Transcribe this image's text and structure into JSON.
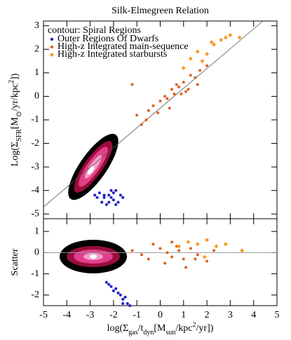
{
  "chart_data": [
    {
      "type": "scatter",
      "title": "Silk-Elmegreen Relation",
      "note": "contour: Spiral Regions",
      "note_color": "#d020a0",
      "y_label_parts": [
        {
          "text": "Log(Σ"
        },
        {
          "text": "SFR",
          "shift": "sub"
        },
        {
          "text": "[M"
        },
        {
          "text": "⊙",
          "shift": "sub"
        },
        {
          "text": "/yr/kpc"
        },
        {
          "text": "2",
          "shift": "super"
        },
        {
          "text": "])"
        }
      ],
      "xlim": [
        -5,
        5
      ],
      "xticks": [
        -5,
        -4,
        -3,
        -2,
        -1,
        0,
        1,
        2,
        3,
        4,
        5
      ],
      "ylim": [
        -5.2,
        3.2
      ],
      "yticks": [
        -5,
        -4,
        -3,
        -2,
        -1,
        0,
        1,
        2,
        3
      ],
      "fit_line": {
        "x": [
          -5,
          4.4
        ],
        "y": [
          -4.7,
          3.2
        ],
        "color": "#555555"
      },
      "series": [
        {
          "name": "Outer Regions Of Dwarfs",
          "color": "#2020c8",
          "marker": "circle",
          "x": [
            -2.6,
            -2.4,
            -2.2,
            -2.0,
            -1.9,
            -1.7,
            -2.5,
            -2.3,
            -2.1,
            -1.8,
            -2.7,
            -2.0,
            -1.6,
            -2.2,
            -2.4,
            -1.9,
            -2.8,
            -2.1
          ],
          "values": [
            -4.1,
            -4.3,
            -4.2,
            -4.4,
            -4.0,
            -4.2,
            -4.5,
            -4.6,
            -4.3,
            -4.5,
            -4.3,
            -4.1,
            -4.3,
            -4.5,
            -4.2,
            -4.6,
            -4.2,
            -4.0
          ]
        },
        {
          "name": "High-z Integrated main-sequence",
          "color": "#e0601a",
          "marker": "circle",
          "x": [
            -1.2,
            -0.8,
            -0.5,
            -0.3,
            0,
            0.2,
            0.3,
            0.5,
            0.6,
            0.8,
            1.0,
            1.1,
            1.3,
            1.5,
            1.7,
            2.0,
            0.4,
            0.9,
            -0.1,
            1.2,
            0.7,
            -0.6,
            -1.0,
            1.6
          ],
          "values": [
            0.5,
            -1.2,
            -0.6,
            -0.4,
            -0.2,
            0,
            -0.1,
            0.3,
            0.1,
            0.4,
            0.6,
            0.2,
            0.9,
            0.8,
            1.1,
            1.3,
            -0.5,
            0.1,
            -0.7,
            0.3,
            0.5,
            -1.0,
            -0.8,
            0.5
          ]
        },
        {
          "name": "High-z Integrated starbursts",
          "color": "#f59a22",
          "marker": "diamond",
          "x": [
            1.0,
            1.3,
            1.6,
            2.0,
            2.3,
            2.6,
            3.0,
            3.4,
            1.8,
            2.2,
            2.8
          ],
          "values": [
            1.2,
            1.6,
            1.9,
            1.8,
            2.2,
            2.4,
            2.6,
            2.5,
            1.5,
            2.3,
            2.5
          ]
        }
      ]
    },
    {
      "type": "scatter",
      "y_label_parts": [
        {
          "text": "Scatter"
        }
      ],
      "x_label_parts": [
        {
          "text": "log(Σ"
        },
        {
          "text": "gas",
          "shift": "sub"
        },
        {
          "text": "/t"
        },
        {
          "text": "dyn",
          "shift": "sub"
        },
        {
          "text": "[M"
        },
        {
          "text": "sun",
          "shift": "sub"
        },
        {
          "text": "/kpc"
        },
        {
          "text": "2",
          "shift": "super"
        },
        {
          "text": "/yr])"
        }
      ],
      "xlim": [
        -5,
        5
      ],
      "xticks": [
        -5,
        -4,
        -3,
        -2,
        -1,
        0,
        1,
        2,
        3,
        4,
        5
      ],
      "ylim": [
        -2.5,
        1.6
      ],
      "yticks": [
        -2,
        -1,
        0,
        1
      ],
      "hline": 0,
      "hline_color": "#999999",
      "series": [
        {
          "color": "#2020c8",
          "marker": "circle",
          "x": [
            -2.3,
            -2.1,
            -2.0,
            -1.8,
            -1.7,
            -1.6,
            -1.5,
            -1.4,
            -1.9,
            -2.2,
            -1.6,
            -1.3
          ],
          "values": [
            -1.4,
            -1.6,
            -1.8,
            -1.9,
            -2.0,
            -2.2,
            -2.1,
            -2.4,
            -1.7,
            -1.5,
            -2.4,
            -2.5
          ]
        },
        {
          "color": "#e0601a",
          "marker": "circle",
          "x": [
            -1.2,
            -0.8,
            -0.5,
            0,
            0.3,
            0.5,
            0.8,
            1.0,
            1.3,
            1.6,
            2.0,
            2.3,
            0.2,
            0.7,
            1.1,
            -0.3,
            0.5,
            1.5
          ],
          "values": [
            0.1,
            -0.1,
            -0.3,
            0.2,
            0.0,
            -0.2,
            0.1,
            -0.3,
            0.2,
            -0.1,
            -0.4,
            0.1,
            -0.5,
            0.3,
            -0.7,
            0.4,
            0.5,
            -0.3
          ]
        },
        {
          "color": "#f59a22",
          "marker": "diamond",
          "x": [
            0.8,
            1.2,
            1.6,
            2.0,
            2.4,
            2.8,
            3.5,
            1.9
          ],
          "values": [
            0.3,
            0.5,
            0.4,
            0.6,
            0.3,
            0.4,
            0.1,
            -0.2
          ]
        }
      ]
    }
  ]
}
